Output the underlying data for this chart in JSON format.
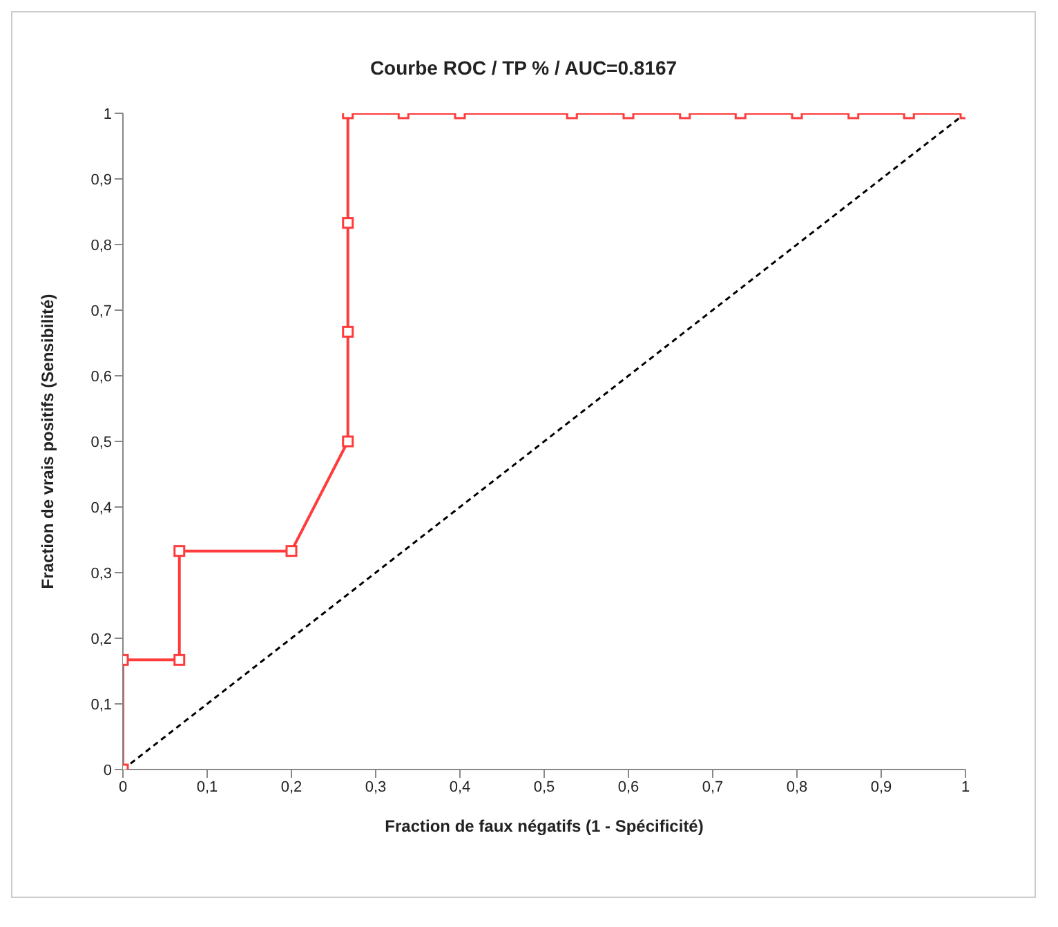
{
  "chart_data": {
    "type": "line",
    "title": "Courbe ROC / TP % / AUC=0.8167",
    "xlabel": "Fraction de faux négatifs (1 - Spécificité)",
    "ylabel": "Fraction de vrais positifs (Sensibilité)",
    "xlim": [
      0,
      1
    ],
    "ylim": [
      0,
      1
    ],
    "xticks": [
      0,
      {
        "value": 0.1,
        "label": "0,1"
      },
      {
        "value": 0.2,
        "label": "0,2"
      },
      {
        "value": 0.3,
        "label": "0,3"
      },
      {
        "value": 0.4,
        "label": "0,4"
      },
      {
        "value": 0.5,
        "label": "0,5"
      },
      {
        "value": 0.6,
        "label": "0,6"
      },
      {
        "value": 0.7,
        "label": "0,7"
      },
      {
        "value": 0.8,
        "label": "0,8"
      },
      {
        "value": 0.9,
        "label": "0,9"
      },
      1
    ],
    "yticks": [
      0,
      {
        "value": 0.1,
        "label": "0,1"
      },
      {
        "value": 0.2,
        "label": "0,2"
      },
      {
        "value": 0.3,
        "label": "0,3"
      },
      {
        "value": 0.4,
        "label": "0,4"
      },
      {
        "value": 0.5,
        "label": "0,5"
      },
      {
        "value": 0.6,
        "label": "0,6"
      },
      {
        "value": 0.7,
        "label": "0,7"
      },
      {
        "value": 0.8,
        "label": "0,8"
      },
      {
        "value": 0.9,
        "label": "0,9"
      },
      1
    ],
    "series": [
      {
        "color": "#ff3b3b",
        "marker": "square",
        "line_style": "solid",
        "x": [
          0,
          0,
          0.067,
          0.067,
          0.2,
          0.267,
          0.267,
          0.267,
          0.267,
          0.333,
          0.4,
          0.533,
          0.6,
          0.667,
          0.733,
          0.8,
          0.867,
          0.933,
          1
        ],
        "values": [
          0,
          0.167,
          0.167,
          0.333,
          0.333,
          0.5,
          0.667,
          0.833,
          1,
          1,
          1,
          1,
          1,
          1,
          1,
          1,
          1,
          1,
          1
        ]
      },
      {
        "color": "#000000",
        "marker": "none",
        "line_style": "dashed",
        "x": [
          0,
          1
        ],
        "values": [
          0,
          1
        ]
      }
    ]
  }
}
